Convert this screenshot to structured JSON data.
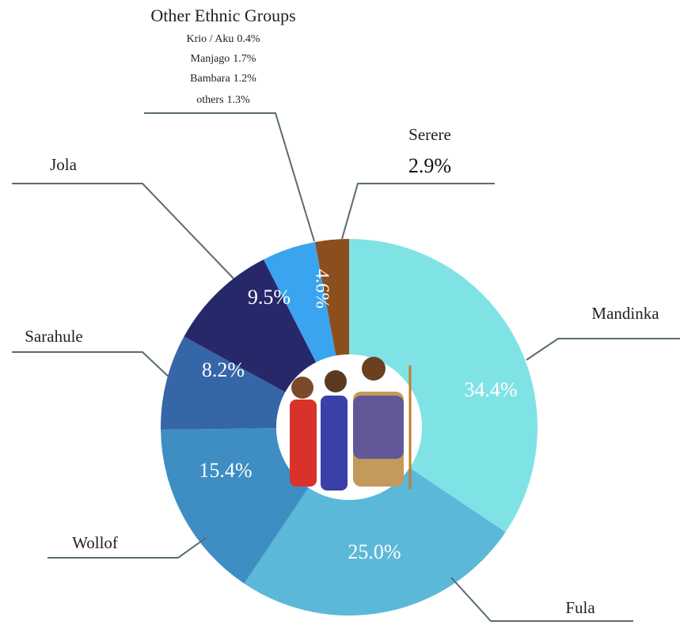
{
  "chart_data": {
    "type": "donut",
    "categories": [
      "Mandinka",
      "Fula",
      "Wollof",
      "Sarahule",
      "Jola",
      "Other Ethnic Groups",
      "Serere"
    ],
    "values": [
      34.4,
      25.0,
      15.4,
      8.2,
      9.5,
      4.6,
      2.9
    ],
    "value_labels": [
      "34.4%",
      "25.0%",
      "15.4%",
      "8.2%",
      "9.5%",
      "4.6%",
      "2.9%"
    ],
    "colors": [
      "#7fe3e6",
      "#5bb8d8",
      "#3e8ec4",
      "#3566a8",
      "#27286a",
      "#3aa4f0",
      "#8b4e1e"
    ],
    "other_groups": [
      {
        "name": "Krio / Aku",
        "value": 0.4,
        "label": "0.4%"
      },
      {
        "name": "Manjago",
        "value": 1.7,
        "label": "1.7%"
      },
      {
        "name": "Bambara",
        "value": 1.2,
        "label": "1.2%"
      },
      {
        "name": "others",
        "value": 1.3,
        "label": "1.3%"
      }
    ]
  }
}
